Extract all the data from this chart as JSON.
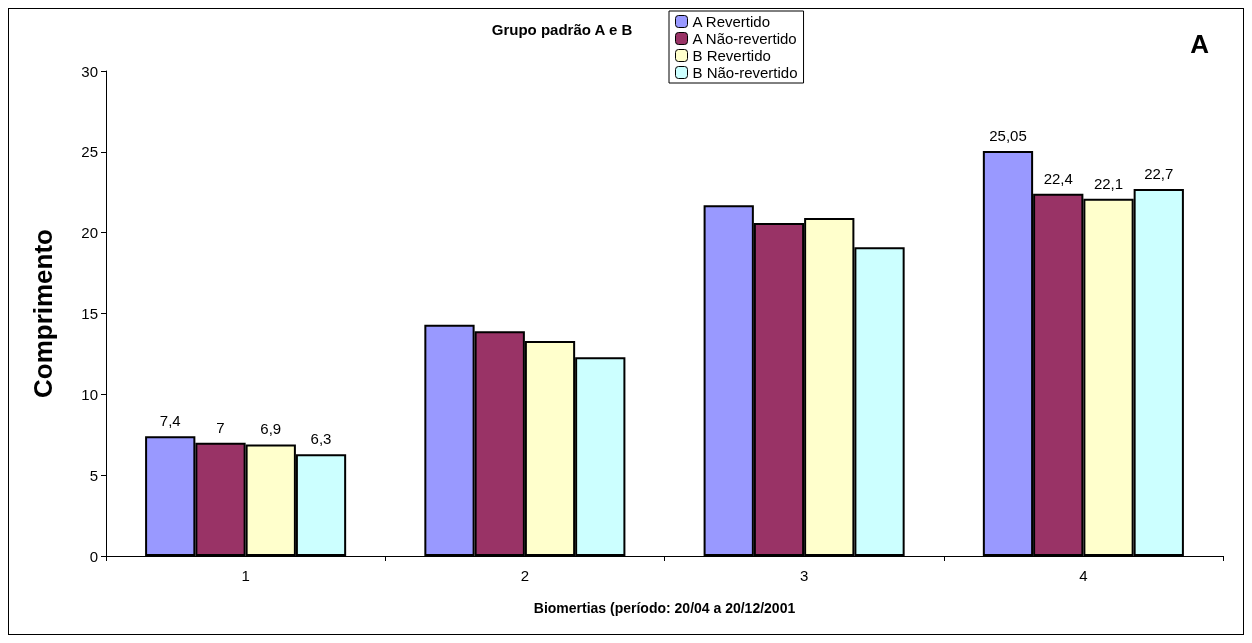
{
  "chart_data": {
    "type": "bar",
    "title": "Grupo padrão A e B",
    "xlabel": "Biomertias (período: 20/04 a 20/12/2001",
    "ylabel": "Comprimento",
    "annotations": [
      "A"
    ],
    "categories": [
      "1",
      "2",
      "3",
      "4"
    ],
    "series": [
      {
        "name": "A Revertido",
        "color": "#9999ff",
        "values": [
          7.4,
          14.3,
          21.7,
          25.05
        ],
        "value_labels": [
          "7,4",
          null,
          null,
          "25,05"
        ]
      },
      {
        "name": "A Não-revertido",
        "color": "#993366",
        "values": [
          7,
          13.9,
          20.6,
          22.4
        ],
        "value_labels": [
          "7",
          null,
          null,
          "22,4"
        ]
      },
      {
        "name": "B Revertido",
        "color": "#ffffcc",
        "values": [
          6.9,
          13.3,
          20.9,
          22.1
        ],
        "value_labels": [
          "6,9",
          null,
          null,
          "22,1"
        ]
      },
      {
        "name": "B Não-revertido",
        "color": "#ccffff",
        "values": [
          6.3,
          12.3,
          19.1,
          22.7
        ],
        "value_labels": [
          "6,3",
          null,
          null,
          "22,7"
        ]
      }
    ],
    "ylim": [
      0,
      30
    ],
    "yticks": [
      0,
      5,
      10,
      15,
      20,
      25,
      30
    ],
    "grid": false,
    "legend": "top"
  }
}
